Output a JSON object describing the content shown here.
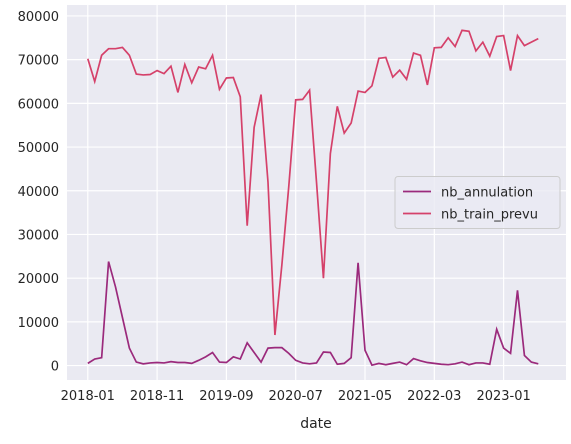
{
  "chart_data": {
    "type": "line",
    "x": [
      "2018-01",
      "2018-02",
      "2018-03",
      "2018-04",
      "2018-05",
      "2018-06",
      "2018-07",
      "2018-08",
      "2018-09",
      "2018-10",
      "2018-11",
      "2018-12",
      "2019-01",
      "2019-02",
      "2019-03",
      "2019-04",
      "2019-05",
      "2019-06",
      "2019-07",
      "2019-08",
      "2019-09",
      "2019-10",
      "2019-11",
      "2019-12",
      "2020-01",
      "2020-02",
      "2020-03",
      "2020-04",
      "2020-05",
      "2020-06",
      "2020-07",
      "2020-08",
      "2020-09",
      "2020-10",
      "2020-11",
      "2020-12",
      "2021-01",
      "2021-02",
      "2021-03",
      "2021-04",
      "2021-05",
      "2021-06",
      "2021-07",
      "2021-08",
      "2021-09",
      "2021-10",
      "2021-11",
      "2021-12",
      "2022-01",
      "2022-02",
      "2022-03",
      "2022-04",
      "2022-05",
      "2022-06",
      "2022-07",
      "2022-08",
      "2022-09",
      "2022-10",
      "2022-11",
      "2022-12",
      "2023-01",
      "2023-02",
      "2023-03",
      "2023-04",
      "2023-05",
      "2023-06"
    ],
    "series": [
      {
        "name": "nb_annulation",
        "color": "#9b2a7c",
        "values": [
          500,
          1500,
          1800,
          23800,
          18000,
          11000,
          4000,
          800,
          400,
          600,
          700,
          600,
          900,
          700,
          700,
          500,
          1200,
          2000,
          3000,
          800,
          700,
          2000,
          1500,
          5200,
          3000,
          800,
          4000,
          4100,
          4100,
          2800,
          1200,
          600,
          400,
          600,
          3100,
          3000,
          300,
          500,
          1800,
          23500,
          3500,
          100,
          500,
          200,
          500,
          800,
          200,
          1600,
          1100,
          700,
          500,
          300,
          200,
          400,
          800,
          200,
          600,
          600,
          300,
          8300,
          4000,
          2800,
          17200,
          2300,
          800,
          400
        ]
      },
      {
        "name": "nb_train_prevu",
        "color": "#d5416a",
        "values": [
          70200,
          65000,
          71000,
          72500,
          72500,
          72800,
          71000,
          66700,
          66500,
          66600,
          67500,
          66800,
          68500,
          62500,
          68900,
          64700,
          68300,
          67900,
          71000,
          63200,
          65800,
          65900,
          61500,
          32000,
          54500,
          62000,
          42000,
          7000,
          23000,
          41000,
          60800,
          60900,
          63000,
          42000,
          20000,
          48500,
          59300,
          53200,
          55500,
          62800,
          62500,
          64000,
          70300,
          70500,
          66000,
          67600,
          65500,
          71500,
          71000,
          64200,
          72700,
          72800,
          75000,
          73000,
          76700,
          76500,
          72000,
          74000,
          70800,
          75300,
          75500,
          67500,
          75500,
          73200,
          74000,
          74800
        ]
      }
    ],
    "xlabel": "date",
    "xlim": [
      "2017-10",
      "2023-10"
    ],
    "xticks": [
      "2018-01",
      "2018-11",
      "2019-09",
      "2020-07",
      "2021-05",
      "2022-03",
      "2023-01"
    ],
    "ylim": [
      -3300,
      82500
    ],
    "yticks": [
      0,
      10000,
      20000,
      30000,
      40000,
      50000,
      60000,
      70000,
      80000
    ],
    "grid": true,
    "legend": "center right"
  }
}
